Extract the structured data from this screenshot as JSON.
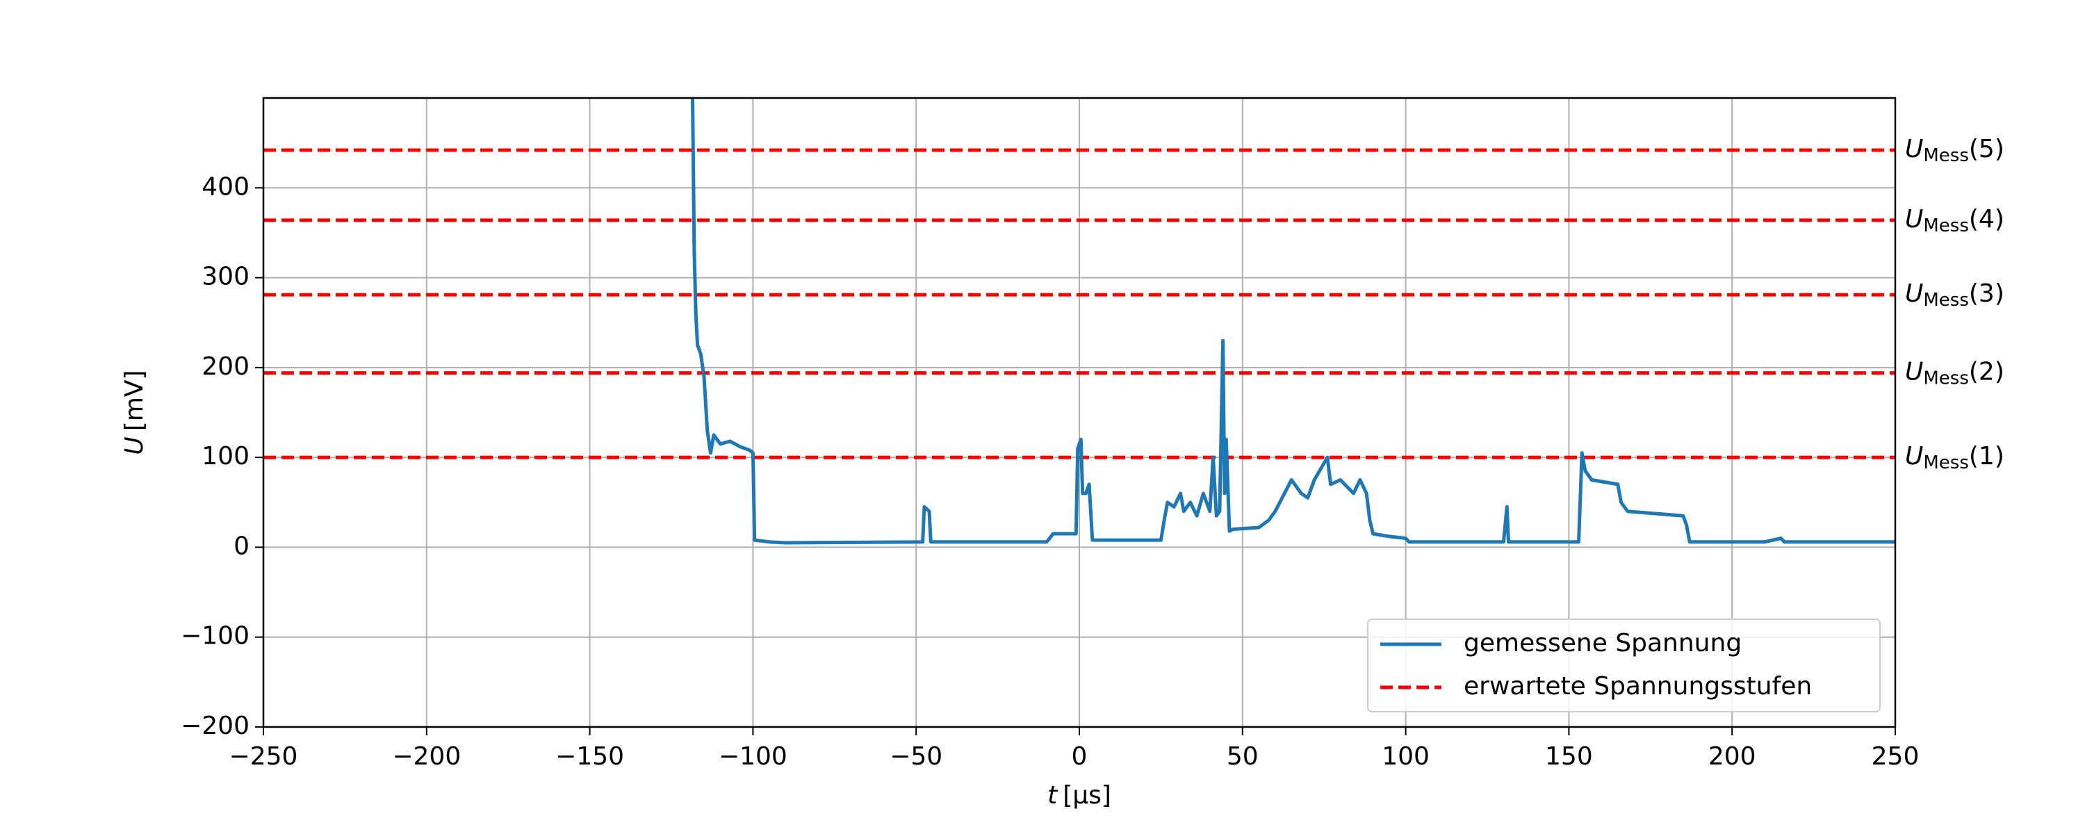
{
  "chart_data": {
    "type": "line",
    "xlabel": {
      "symbol": "t",
      "unit": "[µs]"
    },
    "ylabel": {
      "symbol": "U",
      "unit": "[mV]"
    },
    "xlim": [
      -250,
      250
    ],
    "ylim": [
      -200,
      500
    ],
    "xticks": [
      {
        "value": -250,
        "label": "−250"
      },
      {
        "value": -200,
        "label": "−200"
      },
      {
        "value": -150,
        "label": "−150"
      },
      {
        "value": -100,
        "label": "−100"
      },
      {
        "value": -50,
        "label": "−50"
      },
      0,
      50,
      100,
      150,
      200,
      250
    ],
    "yticks": [
      {
        "value": -200,
        "label": "−200"
      },
      {
        "value": -100,
        "label": "−100"
      },
      0,
      100,
      200,
      300,
      400
    ],
    "grid": true,
    "legend_position": "lower right",
    "series": [
      {
        "name": "gemessene Spannung",
        "color": "#1f77b4",
        "x": [
          -118.5,
          -118,
          -117.5,
          -117,
          -116,
          -115,
          -114,
          -113,
          -112,
          -110,
          -107,
          -104,
          -101,
          -100,
          -99.5,
          -95,
          -90,
          -48,
          -47.5,
          -46,
          -45.5,
          -10,
          -8,
          -1,
          -0.5,
          0.5,
          1,
          2,
          3,
          4,
          25,
          26,
          27,
          29,
          31,
          32,
          34,
          36,
          38,
          40,
          41,
          42,
          43,
          44,
          44.5,
          45,
          46,
          47,
          55,
          58,
          60,
          65,
          68,
          70,
          72,
          76,
          77,
          80,
          84,
          86,
          88,
          89,
          90,
          95,
          100,
          101,
          130,
          131,
          131.5,
          153,
          154,
          155,
          157,
          165,
          166,
          168,
          185,
          186,
          187,
          210,
          215,
          216,
          250
        ],
        "values": [
          500,
          330,
          260,
          225,
          215,
          190,
          130,
          105,
          125,
          115,
          118,
          112,
          108,
          105,
          8,
          6,
          5,
          6,
          45,
          40,
          6,
          6,
          15,
          15,
          110,
          120,
          60,
          60,
          70,
          8,
          8,
          30,
          50,
          45,
          60,
          40,
          50,
          35,
          60,
          40,
          100,
          35,
          40,
          230,
          60,
          120,
          18,
          20,
          22,
          30,
          40,
          75,
          60,
          55,
          75,
          100,
          70,
          75,
          60,
          75,
          60,
          30,
          15,
          12,
          10,
          6,
          6,
          45,
          6,
          6,
          105,
          85,
          75,
          70,
          50,
          40,
          35,
          25,
          6,
          6,
          10,
          6,
          6
        ]
      }
    ],
    "reference_lines": {
      "name": "erwartete Spannungsstufen",
      "color": "#ff0000",
      "values": [
        100,
        194,
        281,
        364,
        442
      ],
      "labels": [
        {
          "symbol": "U",
          "subscript": "Mess",
          "suffix": "(1)"
        },
        {
          "symbol": "U",
          "subscript": "Mess",
          "suffix": "(2)"
        },
        {
          "symbol": "U",
          "subscript": "Mess",
          "suffix": "(3)"
        },
        {
          "symbol": "U",
          "subscript": "Mess",
          "suffix": "(4)"
        },
        {
          "symbol": "U",
          "subscript": "Mess",
          "suffix": "(5)"
        }
      ]
    }
  }
}
